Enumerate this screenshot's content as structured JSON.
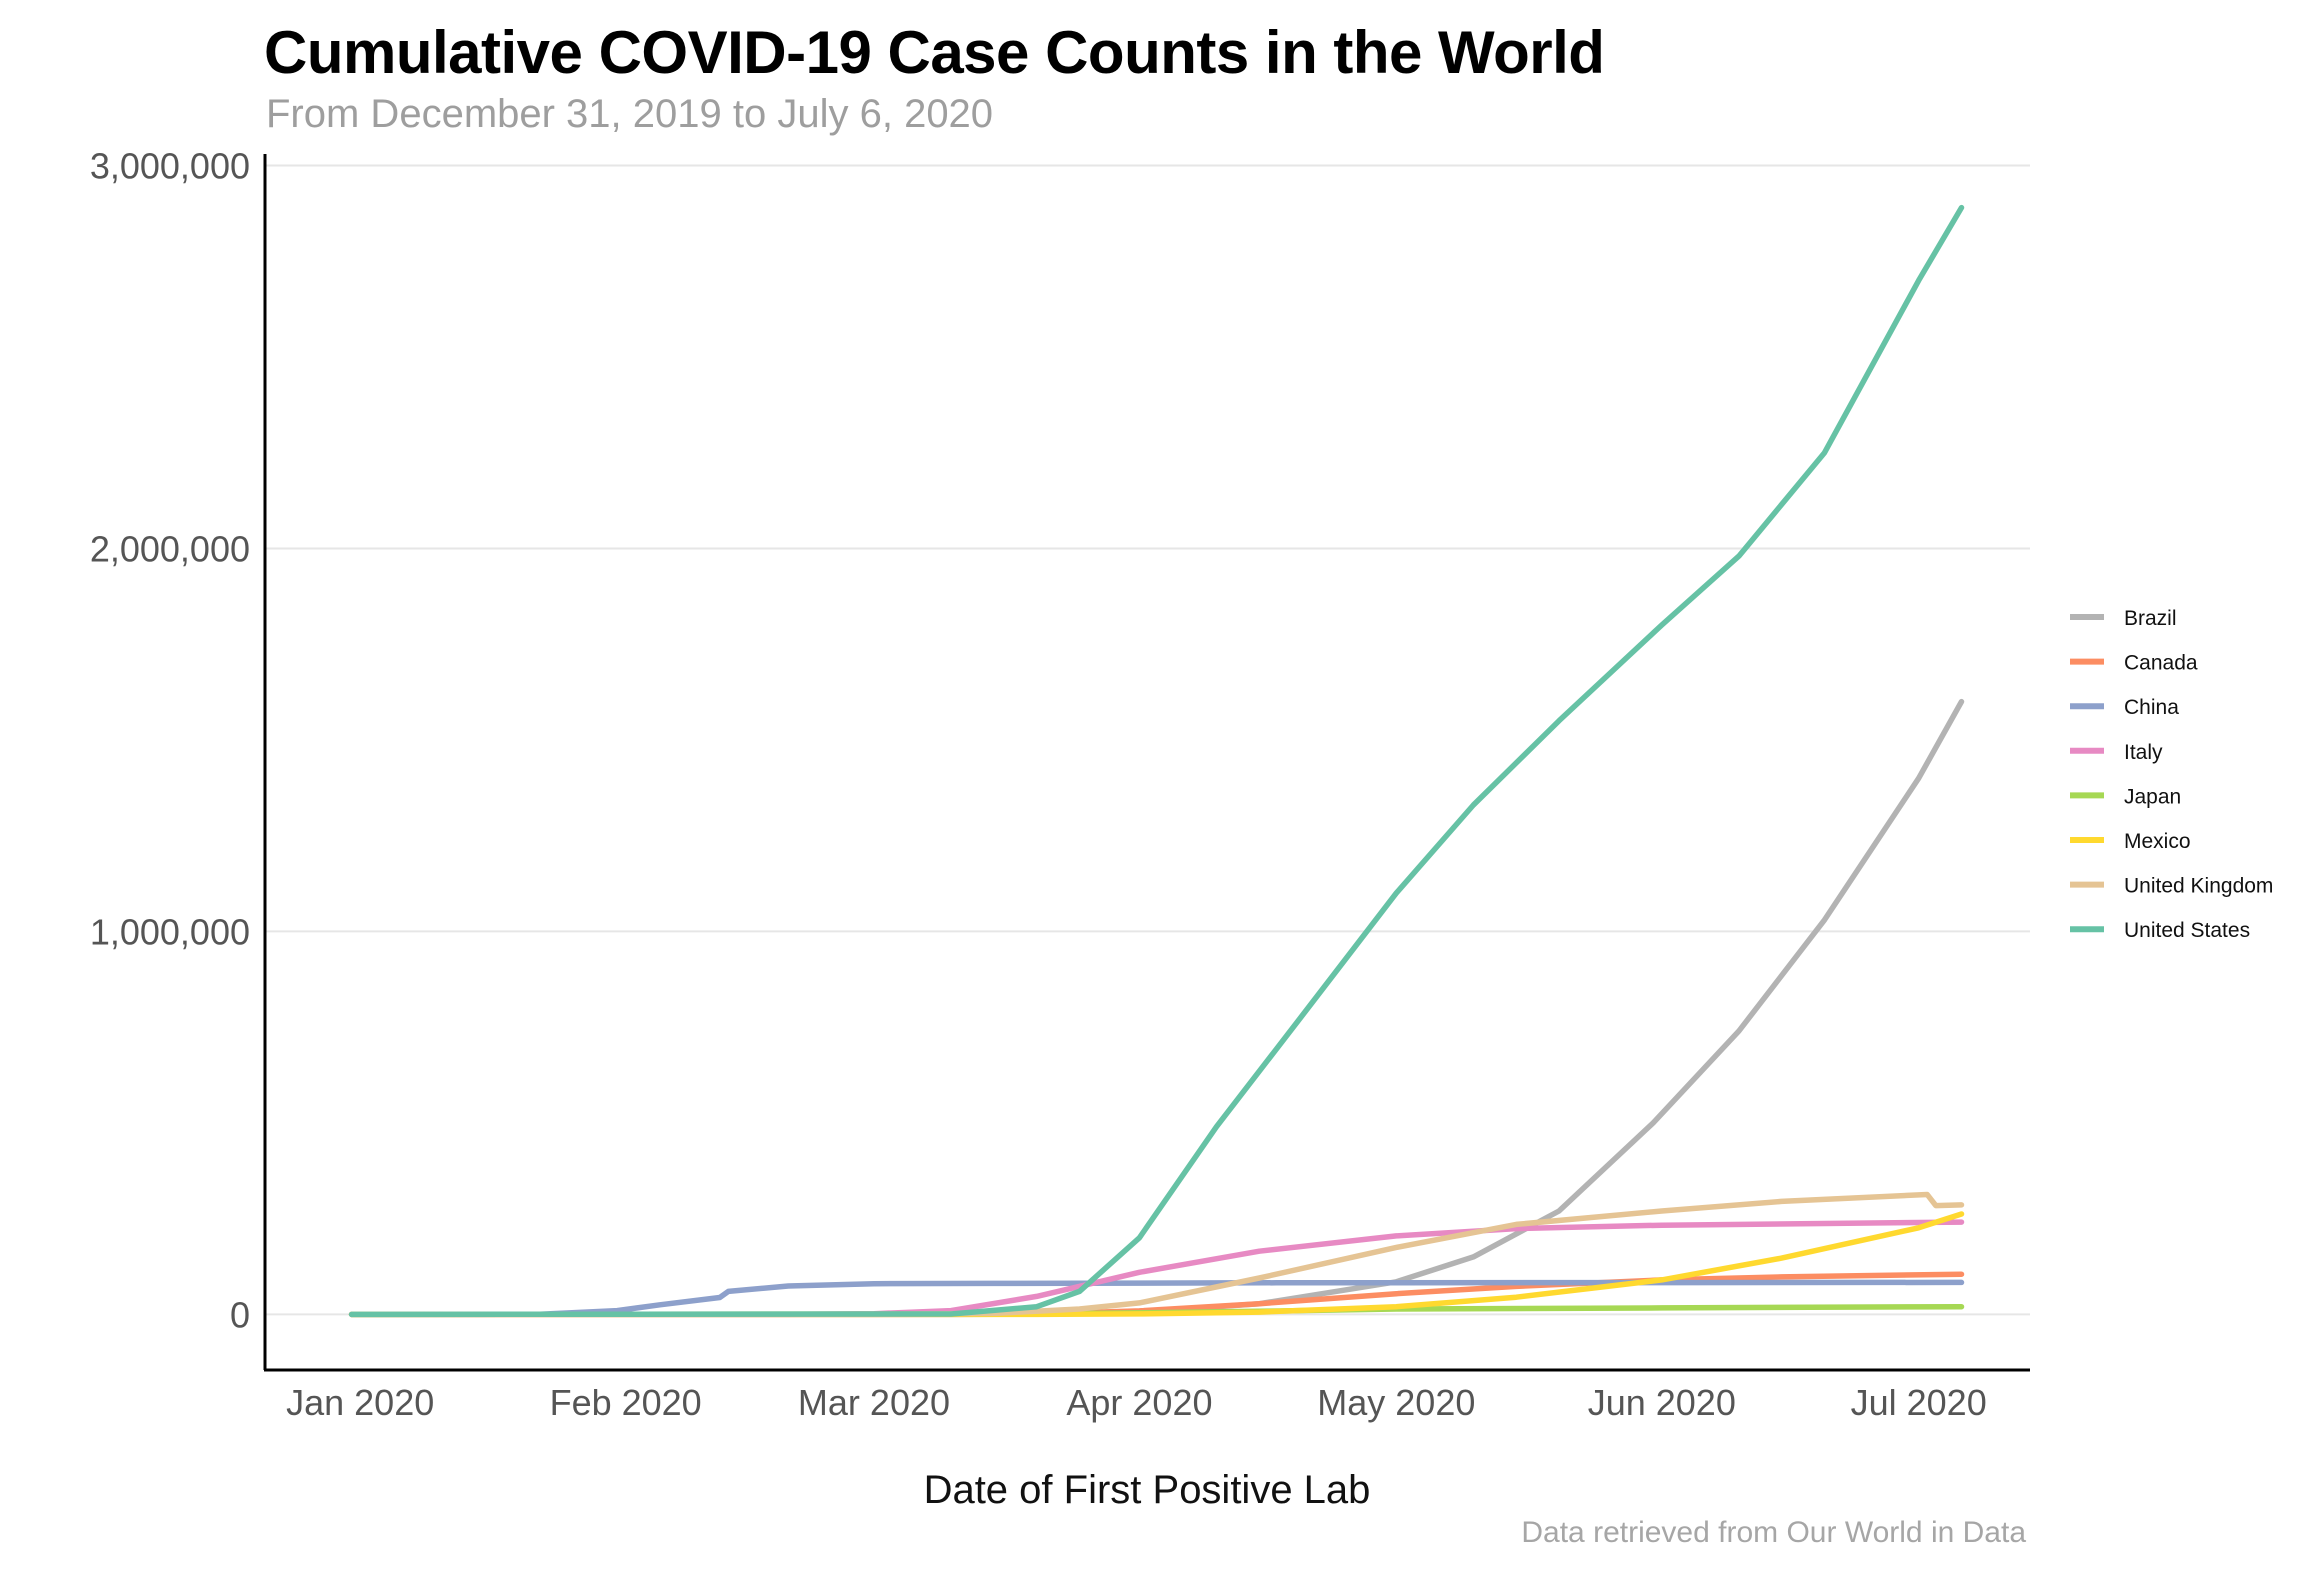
{
  "chart_data": {
    "type": "line",
    "title": "Cumulative COVID-19 Case Counts in the World",
    "subtitle": "From December 31, 2019 to July 6, 2020",
    "xlabel": "Date of First Positive Lab",
    "ylabel": "",
    "caption": "Data retrieved from Our World in Data",
    "x_domain": [
      "2019-12-31",
      "2020-07-06"
    ],
    "xlim": [
      "2019-12-21",
      "2020-07-14"
    ],
    "ylim": [
      -140000,
      3030000
    ],
    "x_ticks": [
      {
        "date": "2020-01-01",
        "label": "Jan 2020"
      },
      {
        "date": "2020-02-01",
        "label": "Feb 2020"
      },
      {
        "date": "2020-03-01",
        "label": "Mar 2020"
      },
      {
        "date": "2020-04-01",
        "label": "Apr 2020"
      },
      {
        "date": "2020-05-01",
        "label": "May 2020"
      },
      {
        "date": "2020-06-01",
        "label": "Jun 2020"
      },
      {
        "date": "2020-07-01",
        "label": "Jul 2020"
      }
    ],
    "y_ticks": [
      {
        "value": 0,
        "label": "0"
      },
      {
        "value": 1000000,
        "label": "1,000,000"
      },
      {
        "value": 2000000,
        "label": "2,000,000"
      },
      {
        "value": 3000000,
        "label": "3,000,000"
      }
    ],
    "grid": "horizontal",
    "legend_position": "right",
    "series": [
      {
        "name": "Brazil",
        "color": "#b3b3b3",
        "points": [
          [
            "2019-12-31",
            0
          ],
          [
            "2020-02-26",
            0
          ],
          [
            "2020-03-20",
            500
          ],
          [
            "2020-04-01",
            6000
          ],
          [
            "2020-04-15",
            28000
          ],
          [
            "2020-05-01",
            85000
          ],
          [
            "2020-05-10",
            150000
          ],
          [
            "2020-05-20",
            270000
          ],
          [
            "2020-05-31",
            500000
          ],
          [
            "2020-06-10",
            740000
          ],
          [
            "2020-06-20",
            1030000
          ],
          [
            "2020-07-01",
            1400000
          ],
          [
            "2020-07-06",
            1600000
          ]
        ]
      },
      {
        "name": "Canada",
        "color": "#fc8d62",
        "points": [
          [
            "2019-12-31",
            0
          ],
          [
            "2020-03-10",
            0
          ],
          [
            "2020-03-20",
            1000
          ],
          [
            "2020-04-01",
            9000
          ],
          [
            "2020-04-15",
            28000
          ],
          [
            "2020-05-01",
            54000
          ],
          [
            "2020-05-15",
            73000
          ],
          [
            "2020-06-01",
            90000
          ],
          [
            "2020-06-15",
            98000
          ],
          [
            "2020-07-06",
            105000
          ]
        ]
      },
      {
        "name": "China",
        "color": "#8da0cb",
        "points": [
          [
            "2019-12-31",
            0
          ],
          [
            "2020-01-15",
            0
          ],
          [
            "2020-01-22",
            500
          ],
          [
            "2020-01-31",
            10000
          ],
          [
            "2020-02-05",
            25000
          ],
          [
            "2020-02-12",
            44000
          ],
          [
            "2020-02-13",
            60000
          ],
          [
            "2020-02-20",
            74000
          ],
          [
            "2020-03-01",
            80000
          ],
          [
            "2020-03-15",
            81000
          ],
          [
            "2020-04-17",
            82600
          ],
          [
            "2020-06-01",
            83000
          ],
          [
            "2020-07-06",
            83500
          ]
        ]
      },
      {
        "name": "Italy",
        "color": "#e78ac3",
        "points": [
          [
            "2019-12-31",
            0
          ],
          [
            "2020-02-20",
            0
          ],
          [
            "2020-03-01",
            1700
          ],
          [
            "2020-03-10",
            10000
          ],
          [
            "2020-03-20",
            47000
          ],
          [
            "2020-04-01",
            110000
          ],
          [
            "2020-04-15",
            165000
          ],
          [
            "2020-05-01",
            205000
          ],
          [
            "2020-05-15",
            224000
          ],
          [
            "2020-06-01",
            233000
          ],
          [
            "2020-07-06",
            241000
          ]
        ]
      },
      {
        "name": "Japan",
        "color": "#a6d854",
        "points": [
          [
            "2019-12-31",
            0
          ],
          [
            "2020-03-20",
            1000
          ],
          [
            "2020-04-15",
            8000
          ],
          [
            "2020-05-01",
            14000
          ],
          [
            "2020-06-01",
            17000
          ],
          [
            "2020-07-06",
            20000
          ]
        ]
      },
      {
        "name": "Mexico",
        "color": "#ffd92f",
        "points": [
          [
            "2019-12-31",
            0
          ],
          [
            "2020-03-20",
            0
          ],
          [
            "2020-04-01",
            1200
          ],
          [
            "2020-04-15",
            6000
          ],
          [
            "2020-05-01",
            20000
          ],
          [
            "2020-05-15",
            45000
          ],
          [
            "2020-06-01",
            90000
          ],
          [
            "2020-06-15",
            147000
          ],
          [
            "2020-07-01",
            226000
          ],
          [
            "2020-07-06",
            262000
          ]
        ]
      },
      {
        "name": "United Kingdom",
        "color": "#e5c494",
        "points": [
          [
            "2019-12-31",
            0
          ],
          [
            "2020-03-01",
            0
          ],
          [
            "2020-03-15",
            2500
          ],
          [
            "2020-03-25",
            14000
          ],
          [
            "2020-04-01",
            30000
          ],
          [
            "2020-04-15",
            95000
          ],
          [
            "2020-05-01",
            175000
          ],
          [
            "2020-05-15",
            235000
          ],
          [
            "2020-06-01",
            270000
          ],
          [
            "2020-06-15",
            295000
          ],
          [
            "2020-07-02",
            313000
          ],
          [
            "2020-07-03",
            284000
          ],
          [
            "2020-07-06",
            286000
          ]
        ]
      },
      {
        "name": "United States",
        "color": "#66c2a5",
        "points": [
          [
            "2019-12-31",
            0
          ],
          [
            "2020-03-10",
            1000
          ],
          [
            "2020-03-20",
            20000
          ],
          [
            "2020-03-25",
            60000
          ],
          [
            "2020-04-01",
            200000
          ],
          [
            "2020-04-10",
            490000
          ],
          [
            "2020-04-20",
            780000
          ],
          [
            "2020-05-01",
            1100000
          ],
          [
            "2020-05-10",
            1330000
          ],
          [
            "2020-05-20",
            1550000
          ],
          [
            "2020-06-01",
            1800000
          ],
          [
            "2020-06-10",
            1980000
          ],
          [
            "2020-06-20",
            2250000
          ],
          [
            "2020-07-01",
            2700000
          ],
          [
            "2020-07-06",
            2890000
          ]
        ]
      }
    ]
  }
}
